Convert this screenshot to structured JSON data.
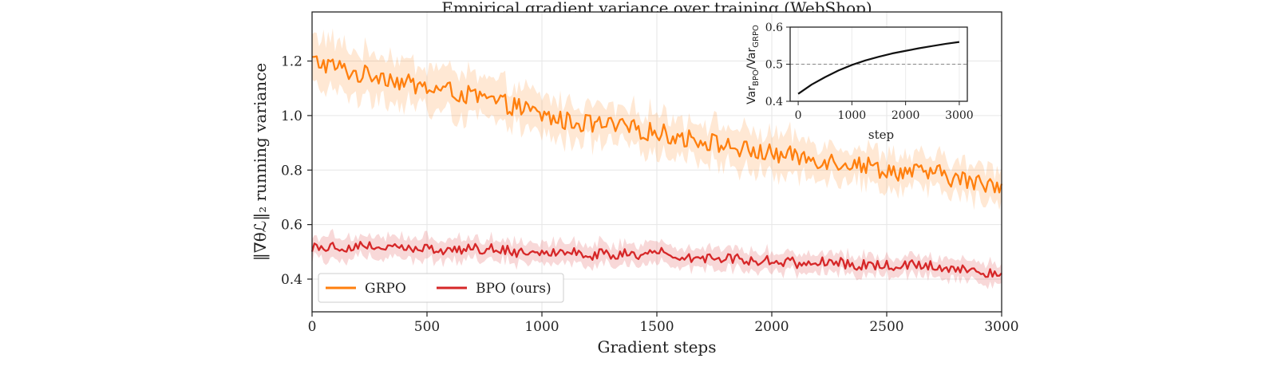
{
  "chart_data": [
    {
      "type": "line",
      "title": "Empirical gradient variance over training (WebShop)",
      "xlabel": "Gradient steps",
      "ylabel": "‖∇θℒ‖₂  running variance",
      "xlim": [
        0,
        3000
      ],
      "ylim": [
        0.28,
        1.38
      ],
      "xticks": [
        0,
        500,
        1000,
        1500,
        2000,
        2500,
        3000
      ],
      "yticks": [
        0.4,
        0.6,
        0.8,
        1.0,
        1.2
      ],
      "xtick_labels": [
        "0",
        "500",
        "1000",
        "1500",
        "2000",
        "2500",
        "3000"
      ],
      "ytick_labels": [
        "0.4",
        "0.6",
        "0.8",
        "1.0",
        "1.2"
      ],
      "grid": true,
      "legend": {
        "placement": "lower-left",
        "ncol": 2
      },
      "series": [
        {
          "name": "GRPO",
          "color": "#ff7f0e",
          "x": [
            0,
            100,
            200,
            300,
            400,
            500,
            600,
            700,
            800,
            900,
            1000,
            1100,
            1200,
            1300,
            1400,
            1500,
            1600,
            1700,
            1800,
            1900,
            2000,
            2100,
            2200,
            2300,
            2400,
            2500,
            2600,
            2700,
            2800,
            2900,
            3000
          ],
          "y": [
            1.2,
            1.18,
            1.15,
            1.15,
            1.12,
            1.1,
            1.09,
            1.07,
            1.05,
            1.03,
            1.0,
            0.98,
            0.97,
            0.96,
            0.95,
            0.94,
            0.92,
            0.91,
            0.89,
            0.87,
            0.86,
            0.85,
            0.84,
            0.83,
            0.82,
            0.8,
            0.79,
            0.79,
            0.77,
            0.75,
            0.75
          ],
          "band_halfwidth": [
            0.1,
            0.09,
            0.08,
            0.08,
            0.08,
            0.08,
            0.08,
            0.08,
            0.07,
            0.07,
            0.07,
            0.07,
            0.07,
            0.07,
            0.07,
            0.07,
            0.07,
            0.07,
            0.07,
            0.07,
            0.07,
            0.07,
            0.06,
            0.06,
            0.06,
            0.06,
            0.06,
            0.06,
            0.06,
            0.06,
            0.06
          ]
        },
        {
          "name": "BPO (ours)",
          "color": "#d62728",
          "x": [
            0,
            100,
            200,
            300,
            400,
            500,
            600,
            700,
            800,
            900,
            1000,
            1100,
            1200,
            1300,
            1400,
            1500,
            1600,
            1700,
            1800,
            1900,
            2000,
            2100,
            2200,
            2300,
            2400,
            2500,
            2600,
            2700,
            2800,
            2900,
            3000
          ],
          "y": [
            0.52,
            0.52,
            0.52,
            0.52,
            0.51,
            0.51,
            0.51,
            0.51,
            0.51,
            0.5,
            0.5,
            0.5,
            0.49,
            0.49,
            0.49,
            0.5,
            0.48,
            0.48,
            0.48,
            0.47,
            0.47,
            0.46,
            0.46,
            0.46,
            0.45,
            0.45,
            0.45,
            0.45,
            0.44,
            0.43,
            0.42
          ],
          "band_halfwidth": [
            0.04,
            0.04,
            0.04,
            0.04,
            0.04,
            0.04,
            0.04,
            0.04,
            0.04,
            0.04,
            0.04,
            0.04,
            0.04,
            0.04,
            0.04,
            0.04,
            0.035,
            0.035,
            0.035,
            0.035,
            0.035,
            0.035,
            0.035,
            0.035,
            0.035,
            0.035,
            0.035,
            0.035,
            0.035,
            0.035,
            0.035
          ]
        }
      ]
    },
    {
      "type": "line",
      "title": "",
      "xlabel": "step",
      "ylabel": "Var_BPO/Var_GRPO",
      "xlim": [
        -150,
        3150
      ],
      "ylim": [
        0.4,
        0.6
      ],
      "xticks": [
        0,
        1000,
        2000,
        3000
      ],
      "yticks": [
        0.4,
        0.5,
        0.6
      ],
      "xtick_labels": [
        "0",
        "1000",
        "2000",
        "3000"
      ],
      "ytick_labels": [
        "0.4",
        "0.5",
        "0.6"
      ],
      "reference_line": {
        "y": 0.5,
        "style": "dashed",
        "color": "#888888"
      },
      "series": [
        {
          "color": "#111111",
          "x": [
            0,
            250,
            500,
            750,
            1000,
            1250,
            1500,
            1750,
            2000,
            2250,
            2500,
            2750,
            3000
          ],
          "y": [
            0.42,
            0.445,
            0.465,
            0.483,
            0.498,
            0.51,
            0.52,
            0.529,
            0.536,
            0.543,
            0.549,
            0.555,
            0.56
          ]
        }
      ]
    }
  ]
}
